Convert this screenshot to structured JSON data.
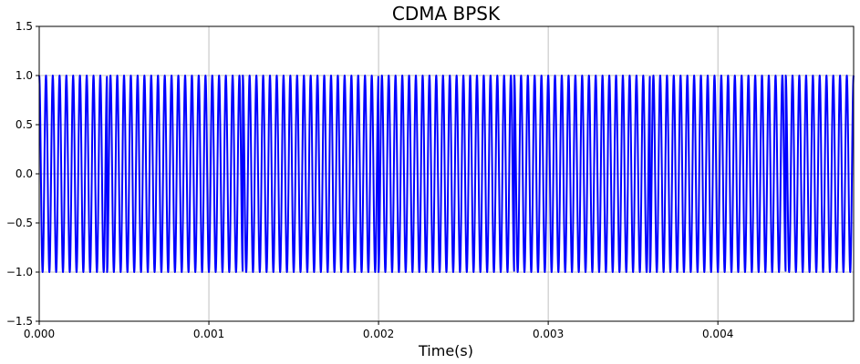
{
  "chart_data": {
    "type": "line",
    "title": "CDMA BPSK",
    "xlabel": "Time(s)",
    "ylabel": "",
    "xlim": [
      0,
      0.0048
    ],
    "ylim": [
      -1.5,
      1.5
    ],
    "grid": true,
    "x_ticks": [
      "0.000",
      "0.001",
      "0.002",
      "0.003",
      "0.004"
    ],
    "y_ticks": [
      "1.5",
      "1.0",
      "0.5",
      "0.0",
      "−0.5",
      "−1.0",
      "−1.5"
    ],
    "x_tick_values": [
      0,
      0.001,
      0.002,
      0.003,
      0.004
    ],
    "y_tick_values": [
      1.5,
      1.0,
      0.5,
      0.0,
      -0.5,
      -1.0,
      -1.5
    ],
    "carrier_frequency_hz": 25000,
    "chip_duration_s": 0.0004,
    "chips": [
      1,
      -1,
      -1,
      1,
      1,
      -1,
      -1,
      1,
      1,
      -1,
      -1,
      1
    ],
    "series": [
      {
        "name": "",
        "color": "#0000ff"
      }
    ]
  }
}
